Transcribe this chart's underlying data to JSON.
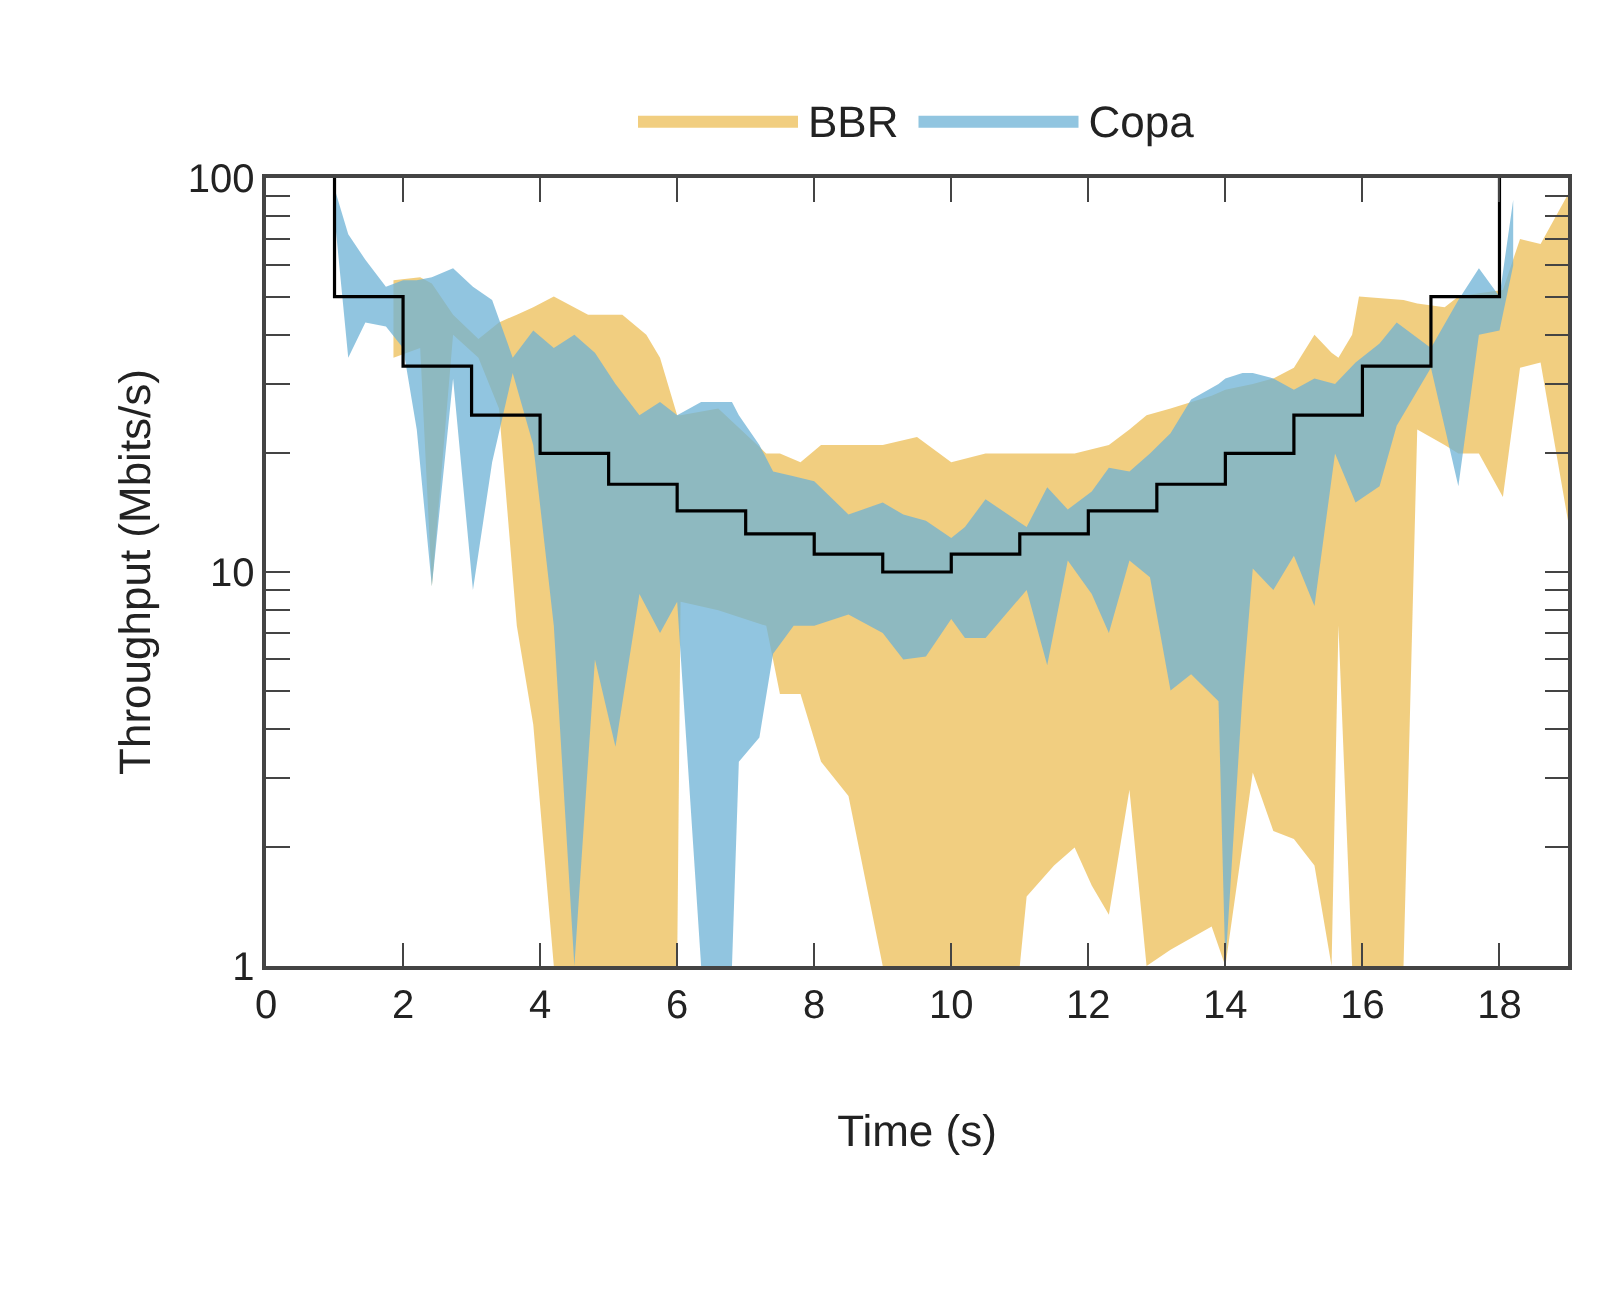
{
  "chart_data": {
    "type": "area",
    "xlabel": "Time (s)",
    "ylabel": "Throughput (Mbits/s)",
    "log": "y",
    "legend": "top",
    "xlim": [
      0,
      19
    ],
    "xticks": [
      0,
      2,
      4,
      6,
      8,
      10,
      12,
      14,
      16,
      18
    ],
    "ylim": [
      1,
      100
    ],
    "yticks": [
      1,
      {
        "value": 2,
        "label": null
      },
      {
        "value": 3,
        "label": null
      },
      {
        "value": 4,
        "label": null
      },
      {
        "value": 5,
        "label": null
      },
      {
        "value": 6,
        "label": null
      },
      {
        "value": 7,
        "label": null
      },
      {
        "value": 8,
        "label": null
      },
      {
        "value": 9,
        "label": null
      },
      10,
      {
        "value": 20,
        "label": null
      },
      {
        "value": 30,
        "label": null
      },
      {
        "value": 40,
        "label": null
      },
      {
        "value": 50,
        "label": null
      },
      {
        "value": 60,
        "label": null
      },
      {
        "value": 70,
        "label": null
      },
      {
        "value": 80,
        "label": null
      },
      {
        "value": 90,
        "label": null
      },
      100
    ],
    "series": [
      {
        "name": "BBR",
        "color": "#efc66a",
        "values": [
          null,
          null,
          null,
          null,
          null,
          null,
          null,
          null,
          null,
          null,
          null,
          null,
          null,
          null,
          null,
          null,
          null,
          null,
          null,
          null,
          null,
          null,
          null,
          null,
          null,
          null,
          null,
          null,
          null,
          null,
          null,
          null,
          null,
          null,
          null,
          null,
          null,
          null,
          null,
          null,
          null,
          null,
          null,
          null,
          null,
          null,
          null,
          null,
          null,
          null,
          null,
          null,
          null
        ],
        "x": [
          1.86,
          2.25,
          2.42,
          2.73,
          3.1,
          3.4,
          3.66,
          3.9,
          4.2,
          4.7,
          5.2,
          5.55,
          5.75,
          6.0,
          6.05,
          6.6,
          7.3,
          7.5,
          7.8,
          8.1,
          8.5,
          9.0,
          9.5,
          10.0,
          10.5,
          11.0,
          11.1,
          11.5,
          11.8,
          12.05,
          12.3,
          12.6,
          12.85,
          13.2,
          13.8,
          14.0,
          14.4,
          14.7,
          15.0,
          15.3,
          15.55,
          15.65,
          15.85,
          15.95,
          16.6,
          16.8,
          17.2,
          17.4,
          17.7,
          18.05,
          18.3,
          18.6,
          19.0
        ],
        "upper": [
          55,
          56,
          54,
          45,
          39,
          43,
          45,
          47,
          50,
          45,
          45,
          40,
          35,
          25,
          25,
          26,
          20,
          20,
          19,
          21,
          21,
          21,
          22,
          19,
          20,
          20,
          20,
          20,
          20,
          20.5,
          21,
          23,
          25,
          26,
          28,
          29,
          30,
          31,
          33,
          40,
          36,
          35,
          40,
          50,
          49,
          48,
          47,
          50,
          51,
          52,
          70,
          68,
          91
        ],
        "lower": [
          35,
          37,
          9.2,
          40,
          35,
          26,
          7.3,
          4.1,
          1,
          1,
          1,
          1,
          1,
          1,
          8.4,
          8,
          7.3,
          4.9,
          4.9,
          3.3,
          2.7,
          1,
          1,
          1,
          1,
          1,
          1.5,
          1.8,
          2,
          1.6,
          1.35,
          2.8,
          1,
          1.1,
          1.26,
          1,
          3.1,
          2.2,
          2.1,
          1.8,
          1,
          7.3,
          1,
          1,
          1,
          23,
          21,
          20,
          20,
          15.5,
          33,
          34,
          13.5
        ]
      },
      {
        "name": "Copa",
        "color": "#6cb2d6",
        "values": [
          null,
          null,
          null,
          null,
          null,
          null,
          null,
          null,
          null,
          null,
          null,
          null,
          null,
          null,
          null,
          null,
          null,
          null,
          null,
          null,
          null,
          null,
          null,
          null,
          null,
          null,
          null,
          null,
          null,
          null,
          null,
          null,
          null,
          null,
          null,
          null,
          null,
          null,
          null,
          null,
          null,
          null,
          null,
          null,
          null,
          null,
          null,
          null,
          null,
          null,
          null,
          null,
          null,
          null,
          null,
          null,
          null,
          null
        ],
        "x": [
          1.0,
          1.2,
          1.45,
          1.75,
          2.0,
          2.2,
          2.42,
          2.73,
          3.02,
          3.3,
          3.6,
          3.9,
          4.2,
          4.5,
          4.8,
          5.1,
          5.45,
          5.75,
          6.0,
          6.35,
          6.8,
          6.9,
          7.2,
          7.4,
          7.7,
          8.0,
          8.5,
          9.0,
          9.3,
          9.63,
          10.0,
          10.2,
          10.5,
          11.1,
          11.4,
          11.7,
          12.05,
          12.3,
          12.6,
          12.9,
          13.2,
          13.5,
          13.9,
          14.0,
          14.25,
          14.4,
          14.7,
          15.0,
          15.3,
          15.6,
          15.9,
          16.25,
          16.5,
          17.0,
          17.4,
          17.7,
          18.0,
          18.2
        ],
        "upper": [
          94,
          72,
          62,
          53,
          55,
          55,
          56,
          59,
          53,
          49,
          35,
          41,
          37,
          40,
          36,
          30,
          25,
          27,
          25,
          27,
          27,
          25,
          21,
          18,
          17.5,
          17,
          14,
          15,
          14,
          13.5,
          12.2,
          13,
          15.3,
          13,
          16.4,
          14.4,
          16,
          18.4,
          18,
          20,
          22.5,
          27.4,
          30,
          31,
          32,
          32,
          31,
          29,
          31,
          30,
          34,
          38,
          43,
          37,
          49,
          59,
          50,
          88
        ],
        "lower": [
          80,
          35,
          43,
          42,
          37,
          23,
          9.2,
          31,
          9,
          19,
          32,
          21,
          7.3,
          1,
          6,
          3.6,
          8.8,
          7,
          8.4,
          1,
          1,
          3.3,
          3.8,
          6.2,
          7.3,
          7.3,
          7.8,
          7,
          6,
          6.1,
          7.6,
          6.8,
          6.8,
          9,
          5.8,
          10.7,
          8.8,
          7,
          10.7,
          9.7,
          5,
          5.5,
          4.7,
          1,
          4.9,
          10.2,
          9,
          11,
          8.2,
          20,
          15,
          16.5,
          23.5,
          33,
          16.5,
          40,
          41,
          60
        ]
      },
      {
        "type": "step",
        "color": "#000000",
        "x": [
          1,
          1,
          2,
          3,
          4,
          5,
          6,
          7,
          8,
          9,
          10,
          11,
          12,
          13,
          14,
          15,
          16,
          17,
          18,
          18
        ],
        "values": [
          100,
          50,
          33.3,
          25,
          20,
          16.7,
          14.3,
          12.5,
          11.1,
          10,
          11.1,
          12.5,
          14.3,
          16.7,
          20,
          25,
          33.3,
          50,
          50,
          100
        ]
      }
    ]
  }
}
